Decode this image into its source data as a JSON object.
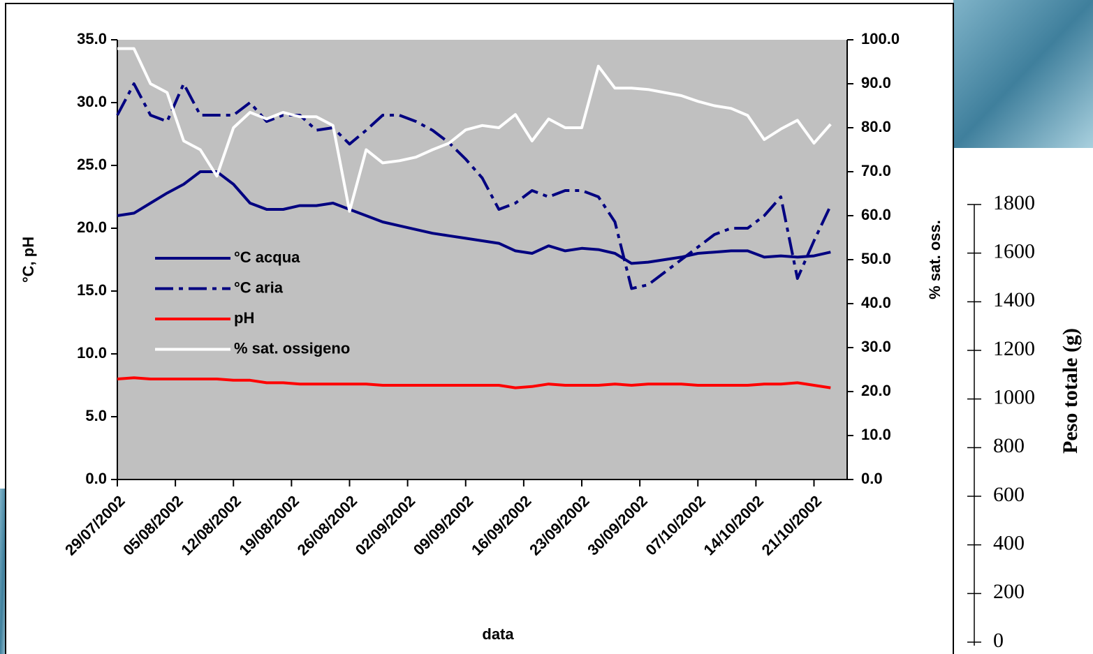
{
  "chart_data": [
    {
      "type": "line",
      "xlabel": "data",
      "ylabel": "°C,  pH",
      "y2label": "% sat. oss.",
      "x": [
        "29/07/2002",
        "31/07/2002",
        "02/08/2002",
        "04/08/2002",
        "06/08/2002",
        "08/08/2002",
        "10/08/2002",
        "12/08/2002",
        "14/08/2002",
        "16/08/2002",
        "18/08/2002",
        "20/08/2002",
        "22/08/2002",
        "24/08/2002",
        "26/08/2002",
        "28/08/2002",
        "30/08/2002",
        "01/09/2002",
        "03/09/2002",
        "05/09/2002",
        "07/09/2002",
        "09/09/2002",
        "11/09/2002",
        "13/09/2002",
        "15/09/2002",
        "17/09/2002",
        "19/09/2002",
        "21/09/2002",
        "23/09/2002",
        "25/09/2002",
        "27/09/2002",
        "29/09/2002",
        "01/10/2002",
        "03/10/2002",
        "05/10/2002",
        "07/10/2002",
        "09/10/2002",
        "11/10/2002",
        "13/10/2002",
        "15/10/2002",
        "17/10/2002",
        "19/10/2002",
        "21/10/2002",
        "23/10/2002"
      ],
      "series": [
        {
          "name": "°C acqua",
          "color": "#000080",
          "line_style": "solid",
          "values": [
            21.0,
            21.2,
            22.0,
            22.8,
            23.5,
            24.5,
            24.5,
            23.5,
            22.0,
            21.5,
            21.5,
            21.8,
            21.8,
            22.0,
            21.5,
            21.0,
            20.5,
            20.2,
            19.9,
            19.6,
            19.4,
            19.2,
            19.0,
            18.8,
            18.2,
            18.0,
            18.6,
            18.2,
            18.4,
            18.3,
            18.0,
            17.2,
            17.3,
            17.5,
            17.7,
            18.0,
            18.1,
            18.2,
            18.2,
            17.7,
            17.8,
            17.7,
            17.8,
            18.1
          ]
        },
        {
          "name": "°C aria",
          "color": "#000080",
          "line_style": "dashdot",
          "values": [
            29.0,
            31.5,
            29.0,
            28.5,
            31.5,
            29.0,
            29.0,
            29.0,
            30.0,
            28.5,
            29.0,
            29.0,
            27.8,
            28.0,
            26.7,
            27.8,
            29.0,
            29.0,
            28.5,
            27.8,
            26.8,
            25.5,
            24.0,
            21.5,
            22.0,
            23.0,
            22.5,
            23.0,
            23.0,
            22.5,
            20.5,
            15.2,
            15.5,
            16.5,
            17.5,
            18.5,
            19.5,
            20.0,
            20.0,
            21.0,
            22.5,
            16.0,
            19.0,
            21.8
          ]
        },
        {
          "name": "pH",
          "color": "#ff0000",
          "line_style": "solid",
          "values": [
            8.0,
            8.1,
            8.0,
            8.0,
            8.0,
            8.0,
            8.0,
            7.9,
            7.9,
            7.7,
            7.7,
            7.6,
            7.6,
            7.6,
            7.6,
            7.6,
            7.5,
            7.5,
            7.5,
            7.5,
            7.5,
            7.5,
            7.5,
            7.5,
            7.3,
            7.4,
            7.6,
            7.5,
            7.5,
            7.5,
            7.6,
            7.5,
            7.6,
            7.6,
            7.6,
            7.5,
            7.5,
            7.5,
            7.5,
            7.6,
            7.6,
            7.7,
            7.5,
            7.3
          ]
        },
        {
          "name": "% sat. ossigeno",
          "color": "#ffffff",
          "line_style": "solid",
          "axis": "y2",
          "values": [
            98,
            98,
            90,
            88,
            77,
            75,
            69,
            80,
            83.5,
            82,
            83.5,
            82.5,
            82.5,
            80.5,
            61,
            75,
            72,
            72.5,
            73.3,
            75,
            76.5,
            79.5,
            80.5,
            80,
            83,
            77,
            82,
            80,
            80,
            94,
            89,
            89,
            88.7,
            88,
            87.3,
            86,
            85,
            84.4,
            82.8,
            77.3,
            79.7,
            81.7,
            76.5,
            80.8
          ]
        }
      ],
      "xlim": [
        "29/07/2002",
        "25/10/2002"
      ],
      "xticks": [
        "29/07/2002",
        "05/08/2002",
        "12/08/2002",
        "19/08/2002",
        "26/08/2002",
        "02/09/2002",
        "09/09/2002",
        "16/09/2002",
        "23/09/2002",
        "30/09/2002",
        "07/10/2002",
        "14/10/2002",
        "21/10/2002"
      ],
      "ylim": [
        0,
        35
      ],
      "yticks": [
        {
          "value": 0,
          "label": "0.0"
        },
        {
          "value": 5,
          "label": "5.0"
        },
        {
          "value": 10,
          "label": "10.0"
        },
        {
          "value": 15,
          "label": "15.0"
        },
        {
          "value": 20,
          "label": "20.0"
        },
        {
          "value": 25,
          "label": "25.0"
        },
        {
          "value": 30,
          "label": "30.0"
        },
        {
          "value": 35,
          "label": "35.0"
        }
      ],
      "y2lim": [
        0,
        100
      ],
      "y2ticks": [
        {
          "value": 0,
          "label": "0.0"
        },
        {
          "value": 10,
          "label": "10.0"
        },
        {
          "value": 20,
          "label": "20.0"
        },
        {
          "value": 30,
          "label": "30.0"
        },
        {
          "value": 40,
          "label": "40.0"
        },
        {
          "value": 50,
          "label": "50.0"
        },
        {
          "value": 60,
          "label": "60.0"
        },
        {
          "value": 70,
          "label": "70.0"
        },
        {
          "value": 80,
          "label": "80.0"
        },
        {
          "value": 90,
          "label": "90.0"
        },
        {
          "value": 100,
          "label": "100.0"
        }
      ],
      "plot_background": "#c0c0c0",
      "legend": "center-left"
    },
    {
      "type": "line",
      "ylabel": "Peso totale (g)",
      "series": [],
      "ylim": [
        0,
        1800
      ],
      "yticks": [
        0,
        200,
        400,
        600,
        800,
        1000,
        1200,
        1400,
        1600,
        1800
      ]
    }
  ]
}
